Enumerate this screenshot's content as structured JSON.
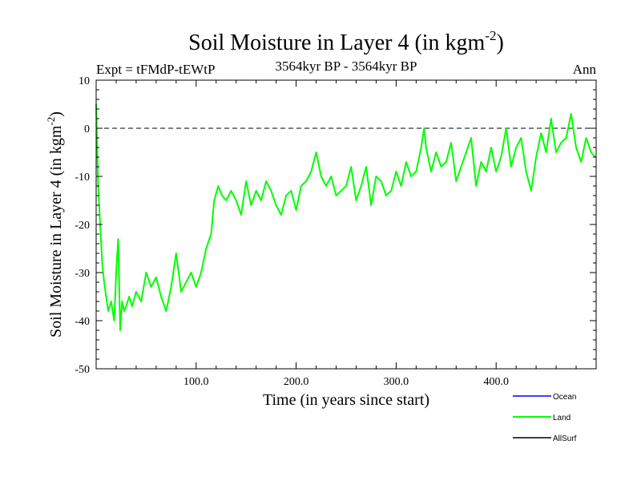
{
  "chart_data": {
    "type": "line",
    "title_main": "Soil Moisture in Layer 4 (in kgm",
    "title_sup": "-2",
    "title_end": ")",
    "subtitle": "3564kyr BP - 3564kyr BP",
    "expt_label": "Expt = tFMdP-tEWtP",
    "season_label": "Ann",
    "xlabel": "Time (in years since start)",
    "ylabel_main": "Soil Moisture in Layer 4 (in kgm",
    "ylabel_sup": "-2",
    "ylabel_end": ")",
    "xlim": [
      0,
      500
    ],
    "ylim": [
      -50,
      10
    ],
    "x_ticks": [
      100,
      200,
      300,
      400
    ],
    "x_tick_labels": [
      "100.0",
      "200.0",
      "300.0",
      "400.0"
    ],
    "y_ticks": [
      -50,
      -40,
      -30,
      -20,
      -10,
      0,
      10
    ],
    "y_tick_labels": [
      "-50",
      "-40",
      "-30",
      "-20",
      "-10",
      "0",
      "10"
    ],
    "reference_line": 0,
    "legend": [
      {
        "name": "Ocean",
        "color": "#0000ff"
      },
      {
        "name": "Land",
        "color": "#00ff00"
      },
      {
        "name": "AllSurf",
        "color": "#000000"
      }
    ],
    "series": [
      {
        "name": "Land",
        "color": "#00ff00",
        "x": [
          0,
          2,
          4,
          6,
          8,
          10,
          12,
          15,
          18,
          20,
          22,
          24,
          26,
          28,
          30,
          33,
          36,
          40,
          45,
          50,
          55,
          60,
          65,
          70,
          75,
          80,
          85,
          90,
          95,
          100,
          105,
          110,
          115,
          118,
          122,
          126,
          130,
          135,
          140,
          145,
          150,
          155,
          160,
          165,
          170,
          175,
          180,
          185,
          190,
          195,
          200,
          205,
          210,
          215,
          220,
          225,
          230,
          235,
          240,
          245,
          250,
          255,
          260,
          265,
          270,
          275,
          280,
          285,
          290,
          295,
          300,
          305,
          310,
          315,
          320,
          325,
          328,
          330,
          335,
          340,
          345,
          350,
          355,
          360,
          365,
          370,
          375,
          380,
          385,
          390,
          395,
          400,
          405,
          410,
          415,
          420,
          425,
          430,
          435,
          440,
          445,
          450,
          455,
          460,
          465,
          470,
          475,
          480,
          485,
          490,
          495,
          499
        ],
        "values": [
          5,
          -12,
          -20,
          -28,
          -32,
          -35,
          -38,
          -36,
          -40,
          -30,
          -23,
          -42,
          -36,
          -38,
          -37,
          -35,
          -37,
          -34,
          -36,
          -30,
          -33,
          -31,
          -35,
          -38,
          -33,
          -26,
          -34,
          -32,
          -30,
          -33,
          -30,
          -25,
          -22,
          -15,
          -12,
          -14,
          -15,
          -13,
          -15,
          -18,
          -11,
          -16,
          -13,
          -15,
          -11,
          -13,
          -16,
          -18,
          -14,
          -13,
          -17,
          -12,
          -11,
          -9,
          -5,
          -10,
          -12,
          -10,
          -14,
          -13,
          -12,
          -8,
          -15,
          -12,
          -8,
          -16,
          -10,
          -11,
          -14,
          -13,
          -9,
          -12,
          -7,
          -10,
          -9,
          -4,
          0,
          -4,
          -9,
          -5,
          -8,
          -7,
          -3,
          -11,
          -8,
          -5,
          -2,
          -12,
          -7,
          -9,
          -4,
          -9,
          -6,
          0,
          -8,
          -4,
          -2,
          -9,
          -13,
          -6,
          -1,
          -5,
          2,
          -5,
          -3,
          -2,
          3,
          -4,
          -7,
          -2,
          -5,
          -6
        ]
      }
    ]
  }
}
